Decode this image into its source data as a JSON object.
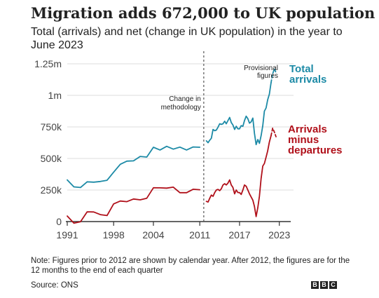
{
  "title": "Migration adds 672,000 to UK population",
  "subtitle": "Total (arrivals) and net (change in UK population) in the year to June 2023",
  "note": "Note: Figures prior to 2012 are shown by calendar year. After 2012, the figures are for the 12 months to the end of each quarter",
  "source": "Source: ONS",
  "logo": [
    "B",
    "B",
    "C"
  ],
  "annotations": {
    "change": [
      "Change in",
      "methodology"
    ],
    "provisional": [
      "Provisional",
      "figures"
    ]
  },
  "colors": {
    "total": "#1c8aa6",
    "net": "#b0101a",
    "grid": "#dddddd",
    "axis": "#333333"
  },
  "chart_data": {
    "type": "line",
    "x_ticks": [
      "1991",
      "1998",
      "2004",
      "2011",
      "2017",
      "2023"
    ],
    "x_tick_values": [
      1991,
      1998,
      2004,
      2011,
      2017,
      2023
    ],
    "y_ticks": [
      "0",
      "250k",
      "500k",
      "750k",
      "1m",
      "1.25m"
    ],
    "y_tick_values": [
      0,
      250000,
      500000,
      750000,
      1000000,
      1250000
    ],
    "xlim": [
      1991,
      2024.3
    ],
    "ylim": [
      0,
      1250000
    ],
    "grid": true,
    "methodology_change_x": 2011.6,
    "series": [
      {
        "name": "Total arrivals",
        "labels": [
          "Total",
          "arrivals"
        ],
        "color": "#1c8aa6",
        "segments": [
          [
            [
              1991,
              330000
            ],
            [
              1992,
              275000
            ],
            [
              1993,
              270000
            ],
            [
              1994,
              315000
            ],
            [
              1995,
              312000
            ],
            [
              1996,
              318000
            ],
            [
              1997,
              327000
            ],
            [
              1998,
              391000
            ],
            [
              1999,
              454000
            ],
            [
              2000,
              479000
            ],
            [
              2001,
              481000
            ],
            [
              2002,
              516000
            ],
            [
              2003,
              511000
            ],
            [
              2004,
              589000
            ],
            [
              2005,
              567000
            ],
            [
              2006,
              596000
            ],
            [
              2007,
              574000
            ],
            [
              2008,
              590000
            ],
            [
              2009,
              567000
            ],
            [
              2010,
              591000
            ],
            [
              2011,
              589000
            ]
          ],
          [
            [
              2012.0,
              640000
            ],
            [
              2012.25,
              625000
            ],
            [
              2012.5,
              645000
            ],
            [
              2012.75,
              660000
            ],
            [
              2013.0,
              730000
            ],
            [
              2013.25,
              720000
            ],
            [
              2013.5,
              725000
            ],
            [
              2013.75,
              748000
            ],
            [
              2014.0,
              775000
            ],
            [
              2014.25,
              770000
            ],
            [
              2014.5,
              775000
            ],
            [
              2014.75,
              795000
            ],
            [
              2015.0,
              775000
            ],
            [
              2015.25,
              800000
            ],
            [
              2015.5,
              825000
            ],
            [
              2015.75,
              785000
            ],
            [
              2016.0,
              765000
            ],
            [
              2016.25,
              730000
            ],
            [
              2016.5,
              755000
            ],
            [
              2016.75,
              735000
            ],
            [
              2017.0,
              735000
            ],
            [
              2017.25,
              760000
            ],
            [
              2017.5,
              755000
            ],
            [
              2017.75,
              800000
            ],
            [
              2018.0,
              835000
            ],
            [
              2018.25,
              815000
            ],
            [
              2018.5,
              780000
            ],
            [
              2018.75,
              790000
            ],
            [
              2019.0,
              820000
            ],
            [
              2019.25,
              700000
            ],
            [
              2019.5,
              610000
            ],
            [
              2019.75,
              650000
            ],
            [
              2020.0,
              620000
            ],
            [
              2020.25,
              680000
            ],
            [
              2020.5,
              760000
            ],
            [
              2020.75,
              875000
            ],
            [
              2021.0,
              900000
            ],
            [
              2021.25,
              965000
            ],
            [
              2021.5,
              1010000
            ],
            [
              2021.75,
              1100000
            ]
          ],
          [
            [
              2021.75,
              1100000
            ],
            [
              2022.0,
              1170000
            ],
            [
              2022.25,
              1210000
            ],
            [
              2022.5,
              1180000
            ]
          ]
        ]
      },
      {
        "name": "Arrivals minus departures",
        "labels": [
          "Arrivals",
          "minus",
          "departures"
        ],
        "color": "#b0101a",
        "segments": [
          [
            [
              1991,
              44000
            ],
            [
              1992,
              -13000
            ],
            [
              1993,
              -1000
            ],
            [
              1994,
              77000
            ],
            [
              1995,
              76000
            ],
            [
              1996,
              55000
            ],
            [
              1997,
              48000
            ],
            [
              1998,
              140000
            ],
            [
              1999,
              163000
            ],
            [
              2000,
              158000
            ],
            [
              2001,
              179000
            ],
            [
              2002,
              172000
            ],
            [
              2003,
              185000
            ],
            [
              2004,
              268000
            ],
            [
              2005,
              267000
            ],
            [
              2006,
              265000
            ],
            [
              2007,
              273000
            ],
            [
              2008,
              229000
            ],
            [
              2009,
              229000
            ],
            [
              2010,
              256000
            ],
            [
              2011,
              252000
            ]
          ],
          [
            [
              2012.0,
              160000
            ],
            [
              2012.25,
              155000
            ],
            [
              2012.5,
              185000
            ],
            [
              2012.75,
              210000
            ],
            [
              2013.0,
              200000
            ],
            [
              2013.25,
              230000
            ],
            [
              2013.5,
              250000
            ],
            [
              2013.75,
              255000
            ],
            [
              2014.0,
              245000
            ],
            [
              2014.25,
              260000
            ],
            [
              2014.5,
              290000
            ],
            [
              2014.75,
              300000
            ],
            [
              2015.0,
              290000
            ],
            [
              2015.25,
              305000
            ],
            [
              2015.5,
              330000
            ],
            [
              2015.75,
              290000
            ],
            [
              2016.0,
              270000
            ],
            [
              2016.25,
              220000
            ],
            [
              2016.5,
              250000
            ],
            [
              2016.75,
              230000
            ],
            [
              2017.0,
              230000
            ],
            [
              2017.25,
              215000
            ],
            [
              2017.5,
              250000
            ],
            [
              2017.75,
              290000
            ],
            [
              2018.0,
              280000
            ],
            [
              2018.25,
              250000
            ],
            [
              2018.5,
              220000
            ],
            [
              2018.75,
              195000
            ],
            [
              2019.0,
              170000
            ],
            [
              2019.25,
              120000
            ],
            [
              2019.5,
              40000
            ],
            [
              2019.75,
              110000
            ],
            [
              2020.0,
              200000
            ],
            [
              2020.25,
              340000
            ],
            [
              2020.5,
              440000
            ],
            [
              2020.75,
              460000
            ],
            [
              2021.0,
              510000
            ],
            [
              2021.25,
              560000
            ],
            [
              2021.5,
              630000
            ],
            [
              2021.75,
              680000
            ]
          ],
          [
            [
              2021.75,
              680000
            ],
            [
              2022.0,
              740000
            ],
            [
              2022.25,
              710000
            ],
            [
              2022.5,
              672000
            ]
          ]
        ]
      }
    ]
  }
}
